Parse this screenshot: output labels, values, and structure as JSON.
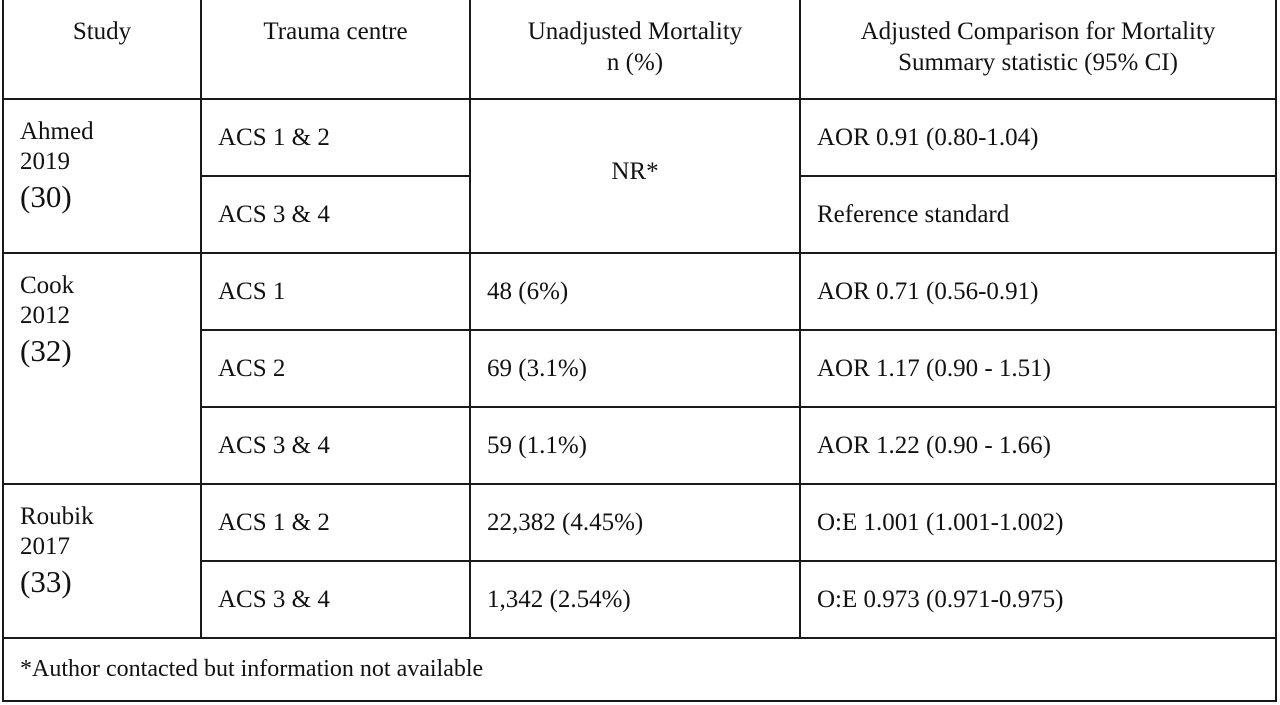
{
  "headers": {
    "study": "Study",
    "centre": "Trauma centre",
    "unadjusted_line1": "Unadjusted Mortality",
    "unadjusted_line2": "n (%)",
    "adjusted_line1": "Adjusted Comparison for Mortality",
    "adjusted_line2": "Summary statistic (95% CI)"
  },
  "studies": [
    {
      "name": "Ahmed",
      "year": "2019",
      "ref": "(30)",
      "merged_unadjusted": "NR*",
      "rows": [
        {
          "centre": "ACS 1 & 2",
          "adjusted": "AOR 0.91 (0.80-1.04)"
        },
        {
          "centre": "ACS 3 & 4",
          "adjusted": "Reference standard"
        }
      ]
    },
    {
      "name": "Cook",
      "year": "2012",
      "ref": "(32)",
      "rows": [
        {
          "centre": "ACS 1",
          "unadjusted": "48 (6%)",
          "adjusted": "AOR 0.71 (0.56-0.91)"
        },
        {
          "centre": "ACS 2",
          "unadjusted": "69 (3.1%)",
          "adjusted": "AOR 1.17 (0.90 - 1.51)"
        },
        {
          "centre": "ACS 3 & 4",
          "unadjusted": "59 (1.1%)",
          "adjusted": "AOR 1.22 (0.90 - 1.66)"
        }
      ]
    },
    {
      "name": "Roubik",
      "year": "2017",
      "ref": "(33)",
      "rows": [
        {
          "centre": "ACS 1 & 2",
          "unadjusted": "22,382 (4.45%)",
          "adjusted": "O:E 1.001 (1.001-1.002)"
        },
        {
          "centre": "ACS 3 & 4",
          "unadjusted": "1,342 (2.54%)",
          "adjusted": "O:E 0.973 (0.971-0.975)"
        }
      ]
    }
  ],
  "footnote": "*Author contacted but information not available"
}
